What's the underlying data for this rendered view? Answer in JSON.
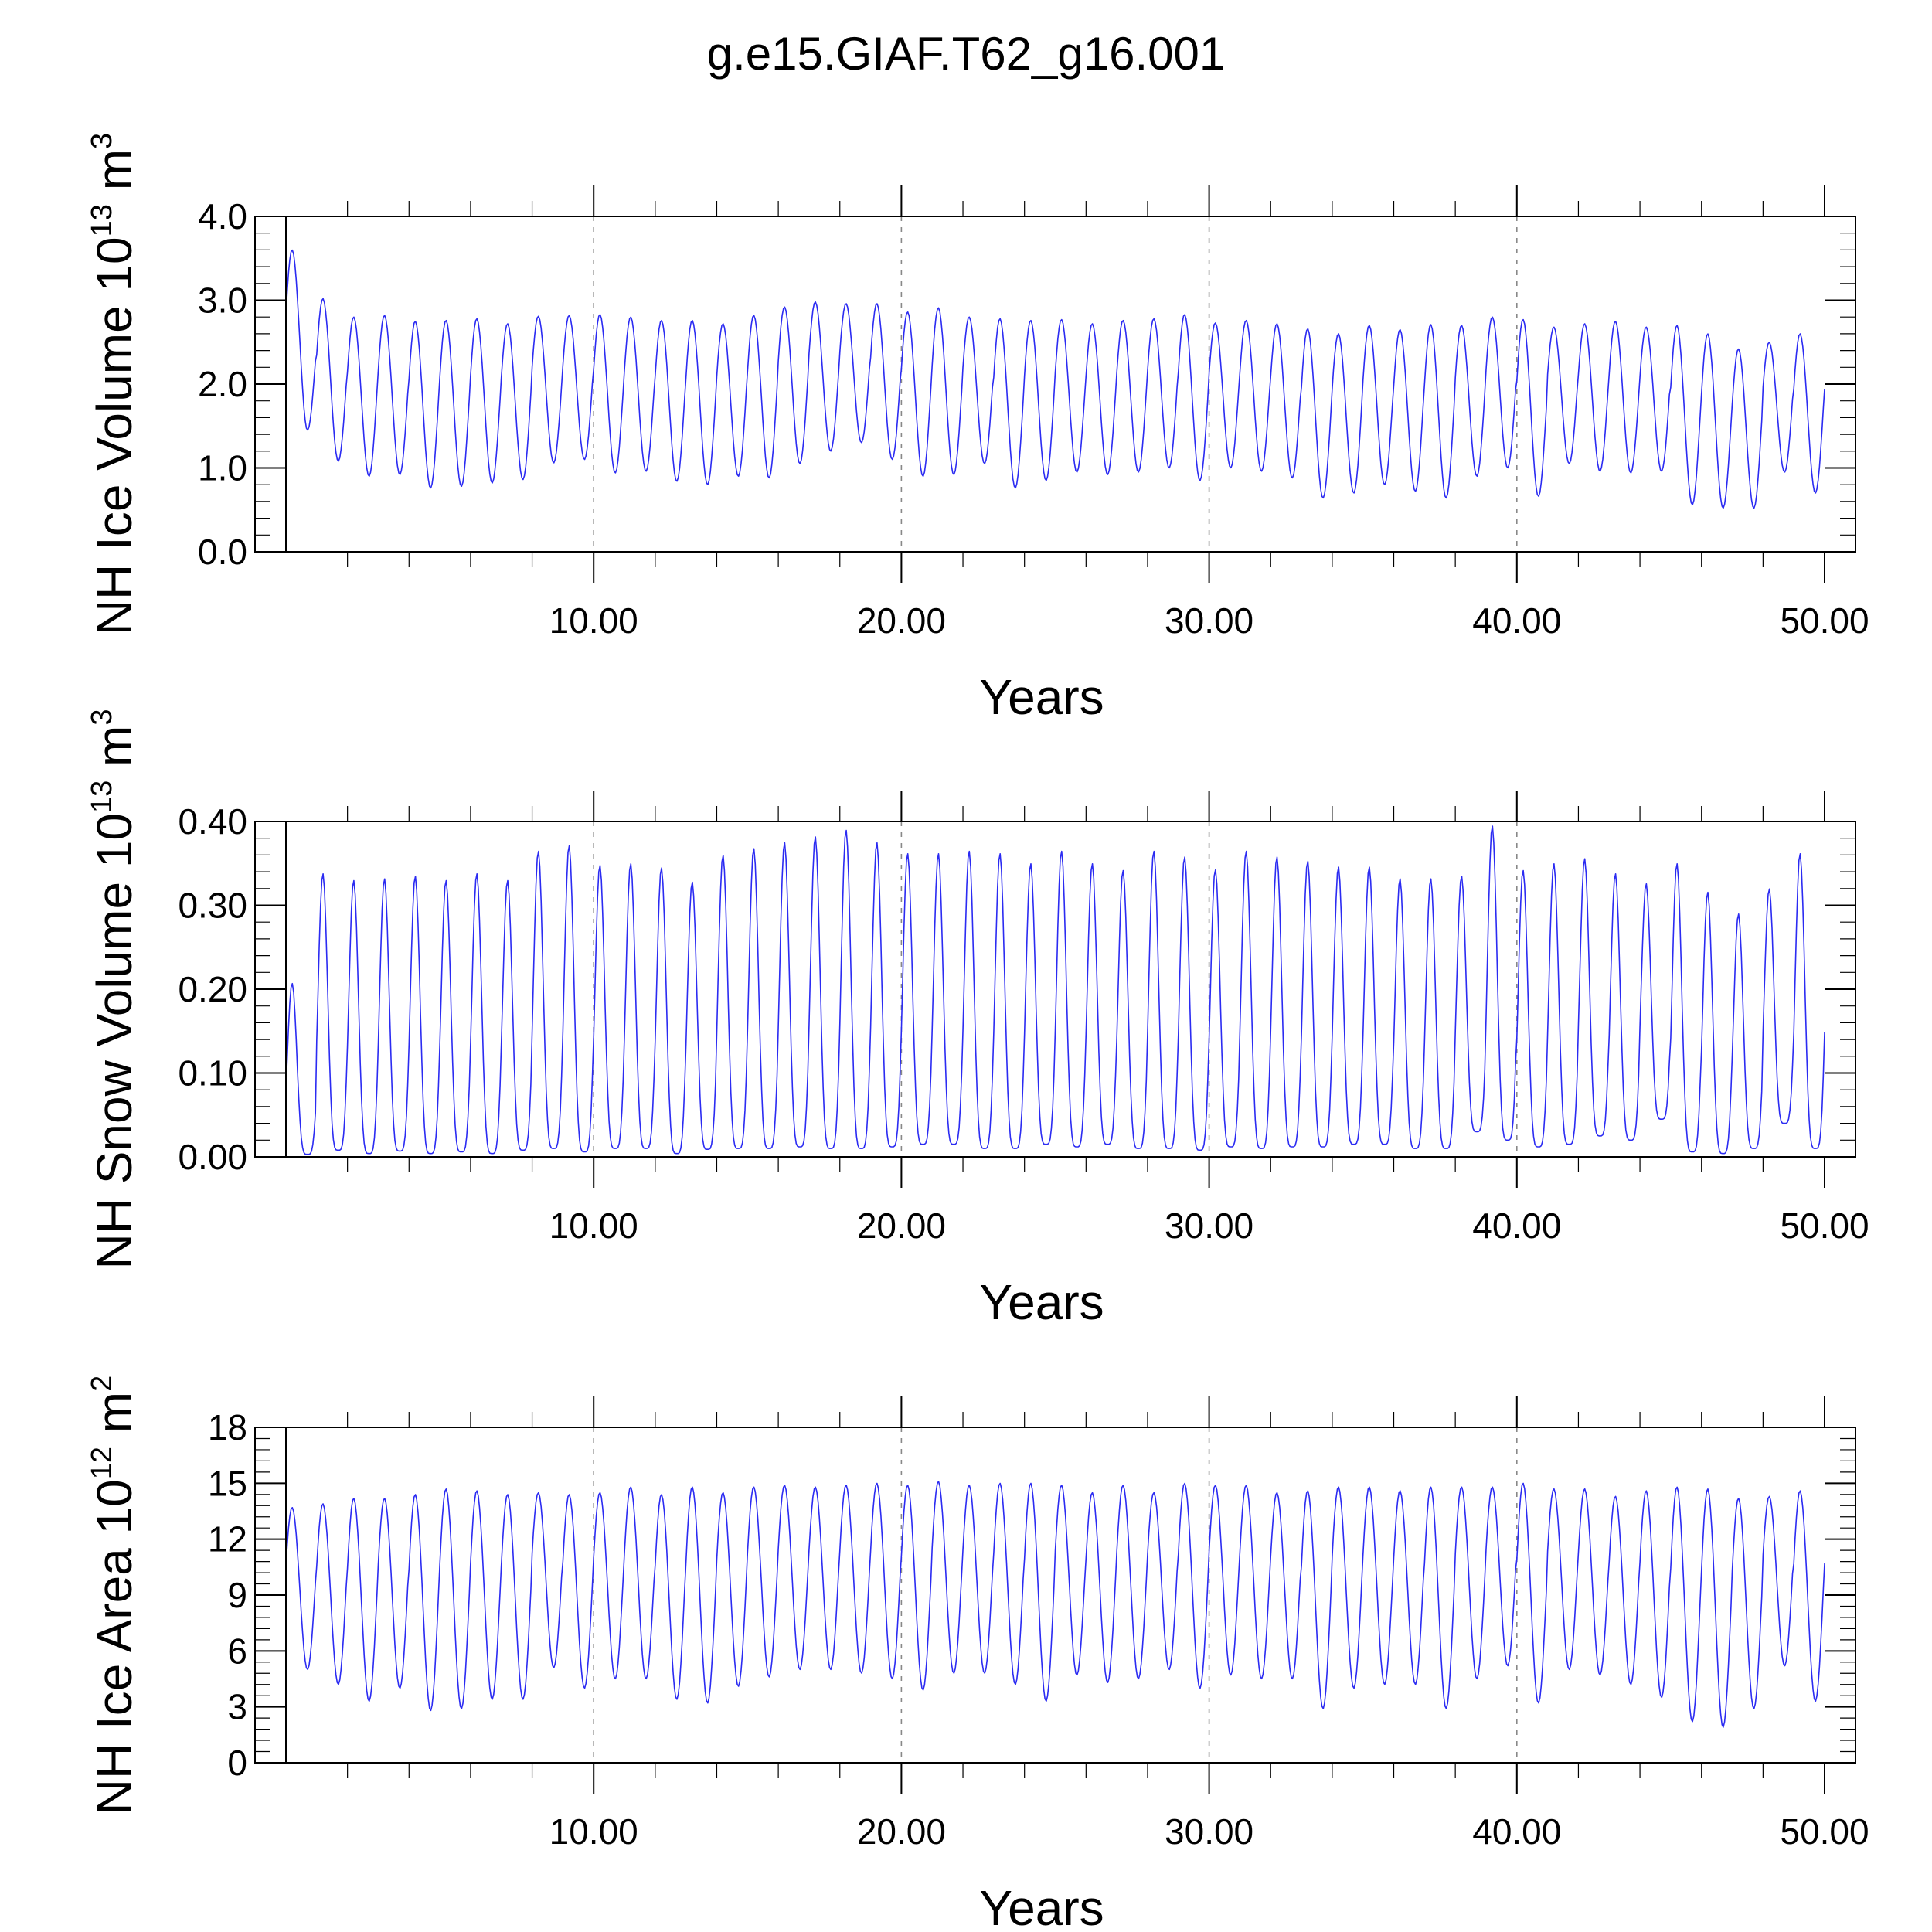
{
  "title": "g.e15.GIAF.T62_g16.001",
  "colors": {
    "series": "#2b2bf2",
    "frame": "#000000",
    "grid": "#888888"
  },
  "chart_data": [
    {
      "type": "line",
      "ylabel": {
        "text": "NH Ice Volume 10",
        "exp": "13",
        "unit": " m",
        "unit_exp": "3"
      },
      "xlabel": "Years",
      "xlim": [
        0.0,
        50.0
      ],
      "ylim": [
        0.0,
        4.0
      ],
      "x_ticks": [
        10,
        20,
        30,
        40,
        50
      ],
      "x_tick_labels": [
        "10.00",
        "20.00",
        "30.00",
        "40.00",
        "50.00"
      ],
      "y_ticks": [
        0.0,
        1.0,
        2.0,
        3.0,
        4.0
      ],
      "y_tick_labels": [
        "0.0",
        "1.0",
        "2.0",
        "3.0",
        "4.0"
      ],
      "grid": "vertical dashed at 10-year ticks",
      "series_name": "NH Ice Volume",
      "annual_max": [
        3.6,
        3.02,
        2.8,
        2.82,
        2.75,
        2.76,
        2.78,
        2.72,
        2.81,
        2.82,
        2.83,
        2.8,
        2.76,
        2.76,
        2.72,
        2.82,
        2.92,
        2.98,
        2.96,
        2.96,
        2.86,
        2.91,
        2.8,
        2.78,
        2.76,
        2.77,
        2.72,
        2.76,
        2.78,
        2.83,
        2.73,
        2.76,
        2.72,
        2.66,
        2.6,
        2.7,
        2.65,
        2.71,
        2.7,
        2.8,
        2.77,
        2.68,
        2.72,
        2.75,
        2.68,
        2.7,
        2.6,
        2.42,
        2.5,
        2.6
      ],
      "annual_min": [
        1.45,
        1.08,
        0.9,
        0.92,
        0.76,
        0.78,
        0.82,
        0.86,
        1.06,
        1.1,
        0.94,
        0.96,
        0.84,
        0.8,
        0.9,
        0.88,
        1.05,
        1.2,
        1.3,
        1.1,
        0.9,
        0.92,
        1.05,
        0.76,
        0.85,
        0.95,
        0.92,
        0.95,
        1.0,
        0.85,
        1.0,
        0.96,
        0.88,
        0.64,
        0.7,
        0.8,
        0.72,
        0.64,
        0.9,
        1.0,
        0.66,
        1.05,
        0.96,
        0.94,
        0.96,
        0.56,
        0.52,
        0.52,
        0.95,
        0.7
      ]
    },
    {
      "type": "line",
      "ylabel": {
        "text": "NH Snow Volume 10",
        "exp": "13",
        "unit": " m",
        "unit_exp": "3"
      },
      "xlabel": "Years",
      "xlim": [
        0.0,
        50.0
      ],
      "ylim": [
        0.0,
        0.4
      ],
      "x_ticks": [
        10,
        20,
        30,
        40,
        50
      ],
      "x_tick_labels": [
        "10.00",
        "20.00",
        "30.00",
        "40.00",
        "50.00"
      ],
      "y_ticks": [
        0.0,
        0.1,
        0.2,
        0.3,
        0.4
      ],
      "y_tick_labels": [
        "0.00",
        "0.10",
        "0.20",
        "0.30",
        "0.40"
      ],
      "grid": "vertical dashed at 10-year ticks",
      "series_name": "NH Snow Volume",
      "annual_max": [
        0.207,
        0.338,
        0.33,
        0.332,
        0.335,
        0.33,
        0.338,
        0.33,
        0.365,
        0.372,
        0.348,
        0.35,
        0.345,
        0.328,
        0.36,
        0.368,
        0.375,
        0.382,
        0.39,
        0.375,
        0.362,
        0.362,
        0.365,
        0.362,
        0.35,
        0.365,
        0.35,
        0.342,
        0.365,
        0.358,
        0.343,
        0.365,
        0.358,
        0.353,
        0.346,
        0.346,
        0.332,
        0.332,
        0.335,
        0.395,
        0.342,
        0.35,
        0.356,
        0.338,
        0.326,
        0.35,
        0.316,
        0.29,
        0.32,
        0.362
      ],
      "annual_min": [
        0.003,
        0.008,
        0.004,
        0.007,
        0.004,
        0.006,
        0.004,
        0.008,
        0.01,
        0.006,
        0.01,
        0.01,
        0.004,
        0.009,
        0.01,
        0.01,
        0.012,
        0.01,
        0.01,
        0.012,
        0.015,
        0.015,
        0.01,
        0.01,
        0.015,
        0.012,
        0.015,
        0.01,
        0.01,
        0.008,
        0.012,
        0.01,
        0.012,
        0.012,
        0.015,
        0.015,
        0.01,
        0.01,
        0.03,
        0.02,
        0.012,
        0.015,
        0.025,
        0.02,
        0.045,
        0.006,
        0.004,
        0.01,
        0.04,
        0.01
      ]
    },
    {
      "type": "line",
      "ylabel": {
        "text": "NH Ice Area 10",
        "exp": "12",
        "unit": " m",
        "unit_exp": "2"
      },
      "xlabel": "Years",
      "xlim": [
        0.0,
        50.0
      ],
      "ylim": [
        0,
        18
      ],
      "x_ticks": [
        10,
        20,
        30,
        40,
        50
      ],
      "x_tick_labels": [
        "10.00",
        "20.00",
        "30.00",
        "40.00",
        "50.00"
      ],
      "y_ticks": [
        0,
        3,
        6,
        9,
        12,
        15,
        18
      ],
      "y_tick_labels": [
        "0",
        "3",
        "6",
        "9",
        "12",
        "15",
        "18"
      ],
      "grid": "vertical dashed at 10-year ticks",
      "series_name": "NH Ice Area",
      "annual_max": [
        13.7,
        13.9,
        14.2,
        14.2,
        14.4,
        14.7,
        14.6,
        14.4,
        14.5,
        14.4,
        14.5,
        14.8,
        14.4,
        14.8,
        14.5,
        14.8,
        14.9,
        14.8,
        14.9,
        15.0,
        14.9,
        15.1,
        14.9,
        15.0,
        15.0,
        14.9,
        14.5,
        14.9,
        14.5,
        15.0,
        14.9,
        14.9,
        14.5,
        14.6,
        14.8,
        14.8,
        14.6,
        14.8,
        14.8,
        14.8,
        15.0,
        14.7,
        14.7,
        14.3,
        14.6,
        14.8,
        14.7,
        14.2,
        14.3,
        14.6
      ],
      "annual_min": [
        5.0,
        4.2,
        3.3,
        4.0,
        2.8,
        2.9,
        3.4,
        3.4,
        5.1,
        4.0,
        4.5,
        4.5,
        3.4,
        3.2,
        4.1,
        4.6,
        5.0,
        5.0,
        4.8,
        4.5,
        3.9,
        4.8,
        4.8,
        4.2,
        3.3,
        4.7,
        4.3,
        4.5,
        5.0,
        4.0,
        4.7,
        4.5,
        4.5,
        2.9,
        4.0,
        4.2,
        4.2,
        2.9,
        4.5,
        5.2,
        3.2,
        5.0,
        4.7,
        4.2,
        3.5,
        2.2,
        1.9,
        2.9,
        5.2,
        3.3
      ]
    }
  ]
}
